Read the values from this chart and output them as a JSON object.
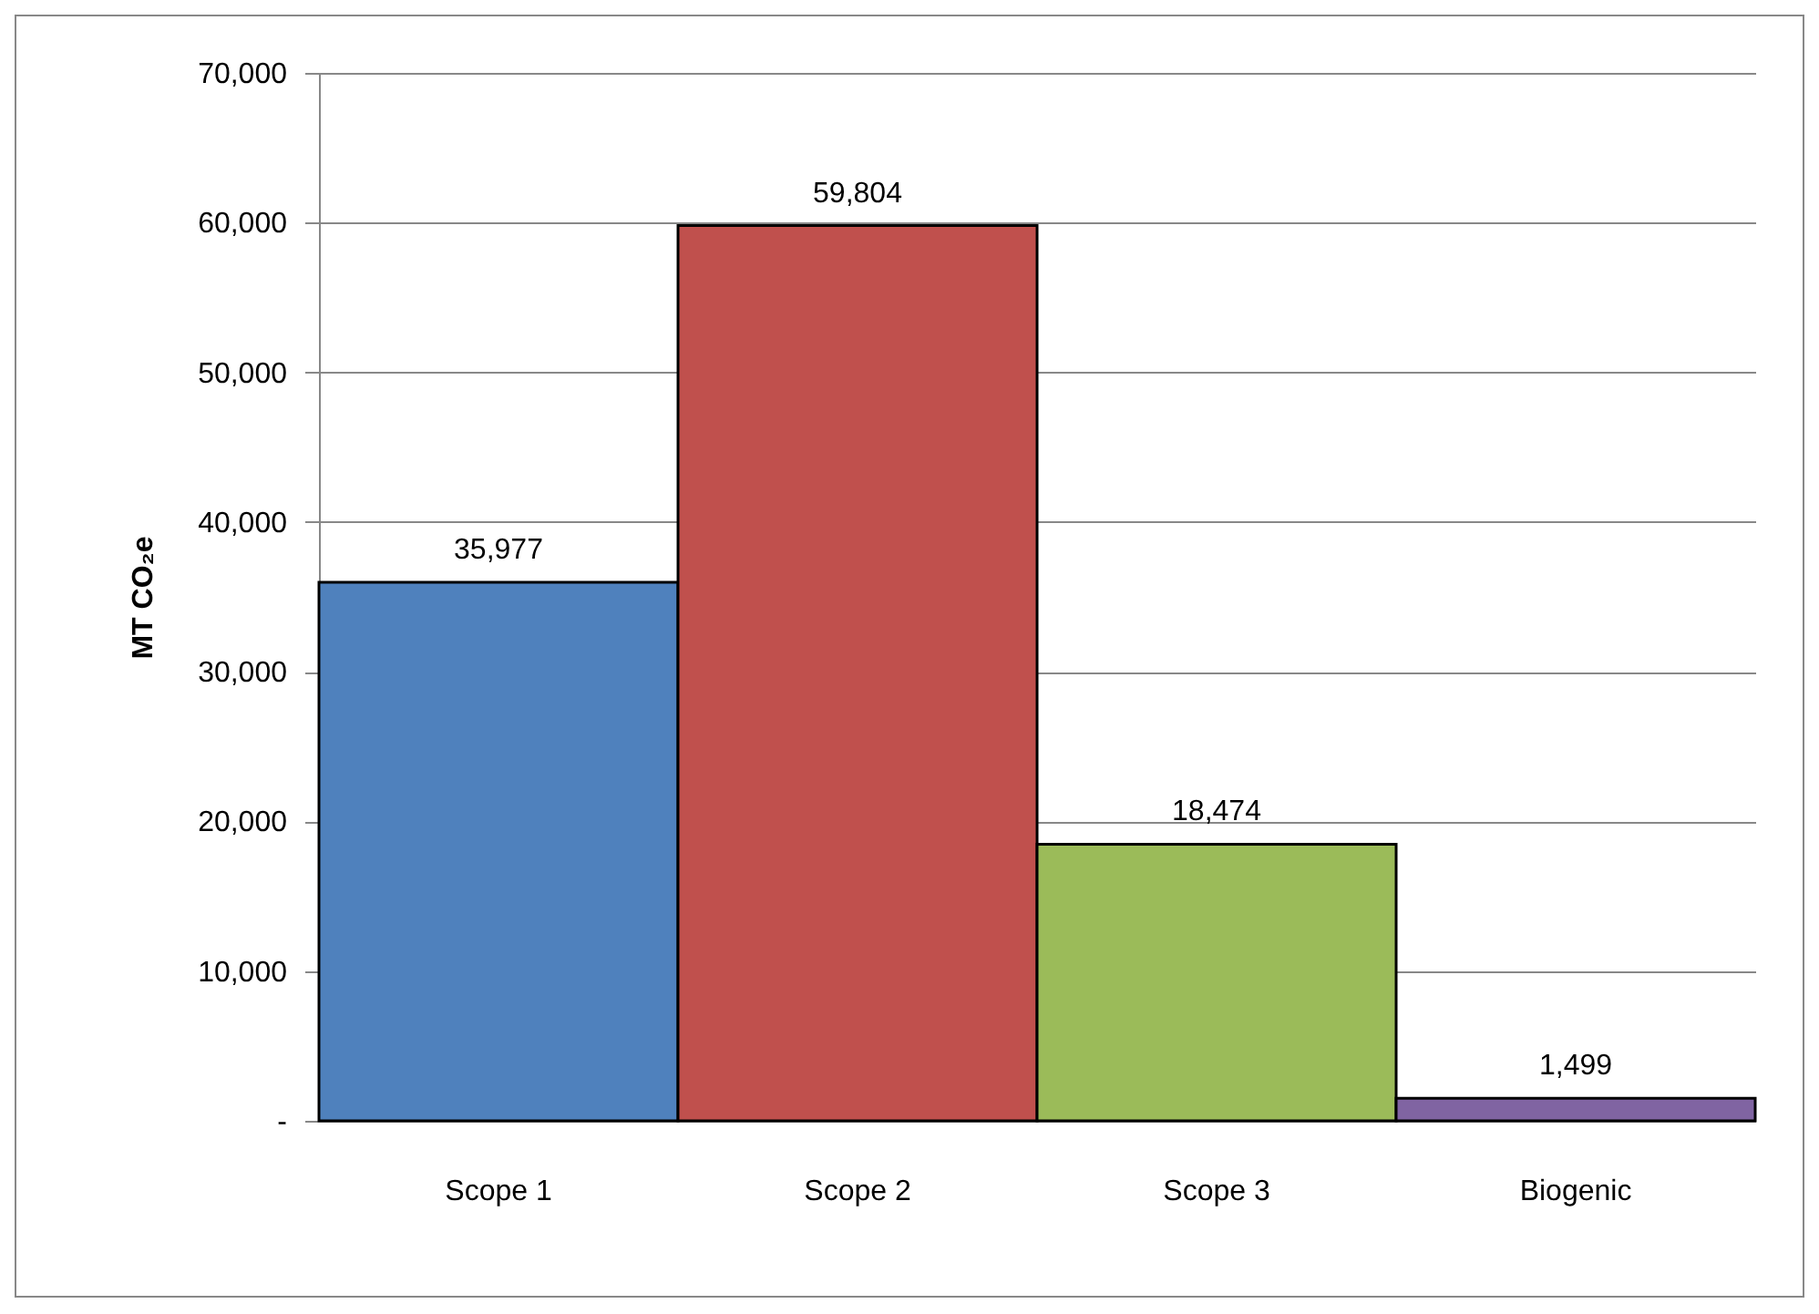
{
  "chart_data": {
    "type": "bar",
    "ylabel": "MT CO₂e",
    "categories": [
      "Scope 1",
      "Scope 2",
      "Scope 3",
      "Biogenic"
    ],
    "values": [
      35977,
      59804,
      18474,
      1499
    ],
    "value_labels": [
      "35,977",
      "59,804",
      "18,474",
      "1,499"
    ],
    "colors": [
      "#4f81bd",
      "#c0504d",
      "#9bbb59",
      "#8064a2"
    ],
    "ylim": [
      0,
      70000
    ],
    "yticks": [
      {
        "value": 0,
        "label": "-"
      },
      {
        "value": 10000,
        "label": "10,000"
      },
      {
        "value": 20000,
        "label": "20,000"
      },
      {
        "value": 30000,
        "label": "30,000"
      },
      {
        "value": 40000,
        "label": "40,000"
      },
      {
        "value": 50000,
        "label": "50,000"
      },
      {
        "value": 60000,
        "label": "60,000"
      },
      {
        "value": 70000,
        "label": "70,000"
      }
    ],
    "grid": "y"
  }
}
